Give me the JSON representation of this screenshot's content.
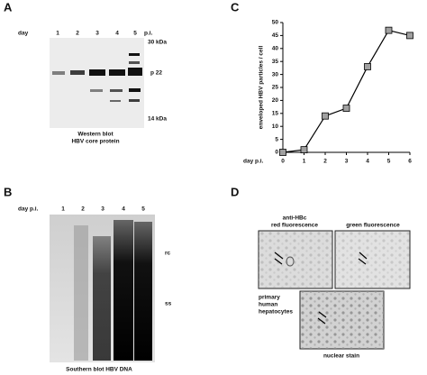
{
  "panels": {
    "A": {
      "label": "A",
      "day": "day",
      "lanes": [
        "1",
        "2",
        "3",
        "4",
        "5"
      ],
      "pi": "p.i.",
      "markers": [
        "30 kDa",
        "p 22",
        "14 kDa"
      ],
      "caption": [
        "Western blot",
        "HBV core protein"
      ]
    },
    "B": {
      "label": "B",
      "day": "day p.i.",
      "lanes": [
        "1",
        "2",
        "3",
        "4",
        "5"
      ],
      "markers": [
        "rc",
        "ss"
      ],
      "caption": "Southern blot HBV DNA"
    },
    "C": {
      "label": "C"
    },
    "D": {
      "label": "D",
      "image_labels": [
        "anti-HBc",
        "red fluorescence",
        "green fluorescence",
        "nuclear stain"
      ],
      "cell_label": [
        "primary",
        "human",
        "hepatocytes"
      ]
    }
  },
  "chart_data": {
    "type": "line",
    "y_label": "enveloped HBV particles / cell",
    "x_label": "day p.i.",
    "x": [
      0,
      1,
      2,
      3,
      4,
      5,
      6
    ],
    "values": [
      0,
      1,
      14,
      17,
      33,
      47,
      45
    ],
    "color": "#000000",
    "marker_color": "#a0a0a0",
    "xlim": [
      0,
      6
    ],
    "xticks": [
      0,
      1,
      2,
      3,
      4,
      5,
      6
    ],
    "ylim": [
      0,
      50
    ],
    "yticks": [
      0,
      5,
      10,
      15,
      20,
      25,
      30,
      35,
      40,
      45,
      50
    ]
  }
}
